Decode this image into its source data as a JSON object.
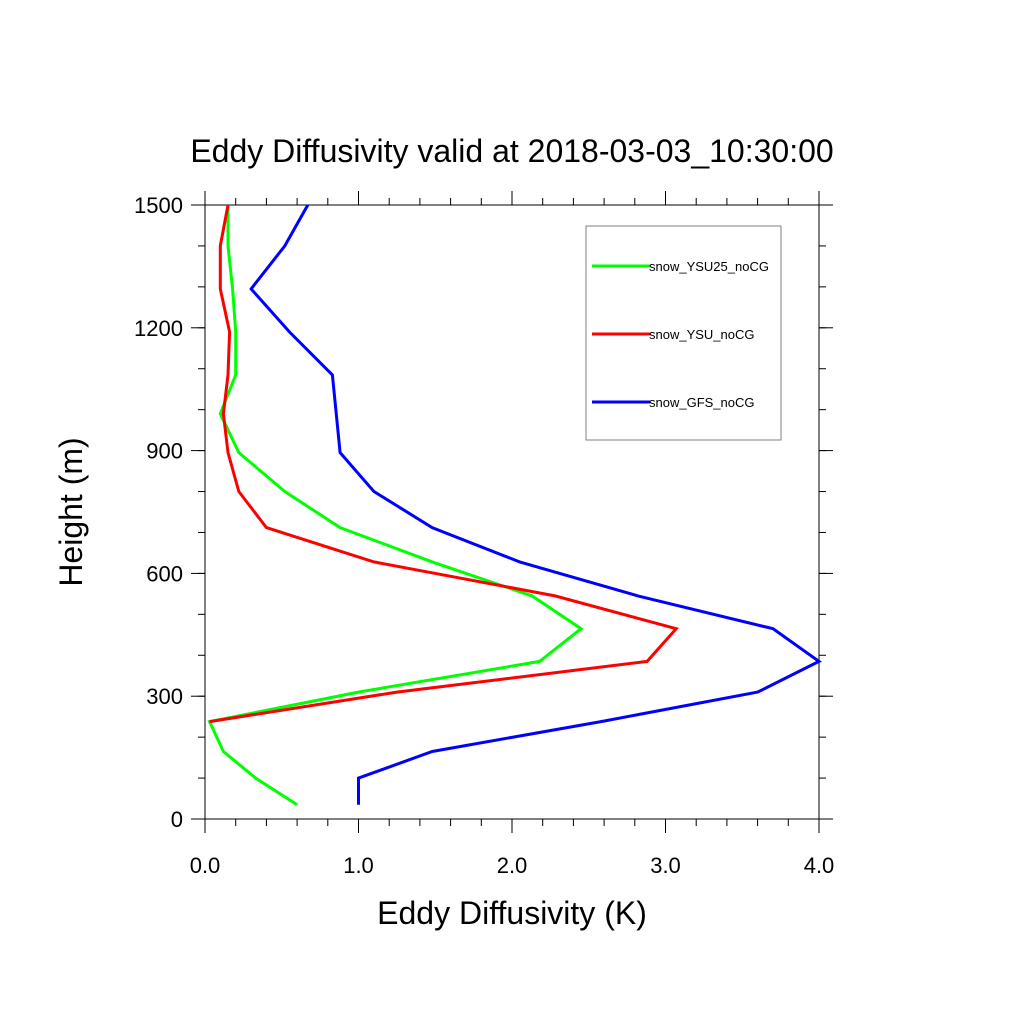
{
  "chart_data": {
    "type": "line",
    "title": "Eddy Diffusivity valid at 2018-03-03_10:30:00",
    "xlabel": "Eddy Diffusivity (K)",
    "ylabel": "Height (m)",
    "xlim": [
      0.0,
      4.0
    ],
    "ylim": [
      0,
      1500
    ],
    "xticks": [
      0.0,
      1.0,
      2.0,
      3.0,
      4.0
    ],
    "xtick_labels": [
      "0.0",
      "1.0",
      "2.0",
      "3.0",
      "4.0"
    ],
    "yticks": [
      0,
      300,
      600,
      900,
      1200,
      1500
    ],
    "ytick_labels": [
      "0",
      "300",
      "600",
      "900",
      "1200",
      "1500"
    ],
    "grid": false,
    "legend_position": "top-right",
    "series": [
      {
        "name": "snow_YSU25_noCG",
        "color": "#00ff00",
        "points": [
          [
            0.6,
            35
          ],
          [
            0.33,
            100
          ],
          [
            0.12,
            165
          ],
          [
            0.03,
            238
          ],
          [
            1.0,
            310
          ],
          [
            2.18,
            385
          ],
          [
            2.45,
            465
          ],
          [
            2.13,
            545
          ],
          [
            1.48,
            628
          ],
          [
            0.88,
            712
          ],
          [
            0.52,
            800
          ],
          [
            0.22,
            895
          ],
          [
            0.1,
            990
          ],
          [
            0.2,
            1085
          ],
          [
            0.2,
            1190
          ],
          [
            0.18,
            1295
          ],
          [
            0.15,
            1400
          ],
          [
            0.15,
            1500
          ]
        ]
      },
      {
        "name": "snow_YSU_noCG",
        "color": "#ff0000",
        "points": [
          [
            0.03,
            238
          ],
          [
            1.25,
            310
          ],
          [
            2.88,
            385
          ],
          [
            3.07,
            465
          ],
          [
            2.28,
            545
          ],
          [
            1.1,
            628
          ],
          [
            0.4,
            712
          ],
          [
            0.22,
            800
          ],
          [
            0.15,
            895
          ],
          [
            0.12,
            990
          ],
          [
            0.15,
            1085
          ],
          [
            0.16,
            1190
          ],
          [
            0.1,
            1295
          ],
          [
            0.1,
            1400
          ],
          [
            0.15,
            1500
          ]
        ]
      },
      {
        "name": "snow_GFS_noCG",
        "color": "#0000ff",
        "points": [
          [
            1.0,
            35
          ],
          [
            1.0,
            100
          ],
          [
            1.48,
            165
          ],
          [
            2.58,
            238
          ],
          [
            3.6,
            310
          ],
          [
            4.0,
            385
          ],
          [
            3.7,
            465
          ],
          [
            2.82,
            545
          ],
          [
            2.05,
            628
          ],
          [
            1.48,
            712
          ],
          [
            1.1,
            800
          ],
          [
            0.88,
            895
          ],
          [
            0.83,
            1085
          ],
          [
            0.55,
            1190
          ],
          [
            0.3,
            1295
          ],
          [
            0.52,
            1400
          ],
          [
            0.67,
            1500
          ]
        ]
      }
    ]
  }
}
